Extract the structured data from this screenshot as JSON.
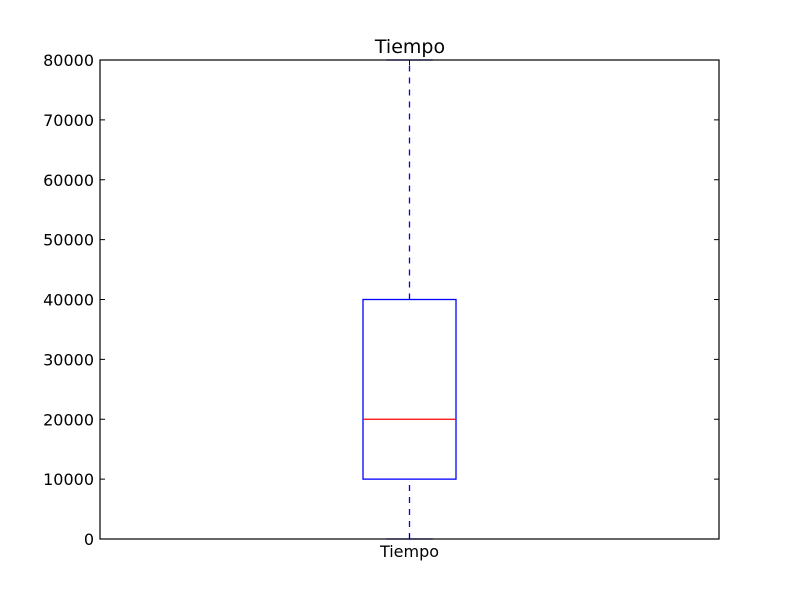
{
  "chart_data": {
    "type": "box",
    "title": "Tiempo",
    "xlabel": "",
    "ylabel": "",
    "categories": [
      "Tiempo"
    ],
    "ylim": [
      0,
      80000
    ],
    "yticks": [
      0,
      10000,
      20000,
      30000,
      40000,
      50000,
      60000,
      70000,
      80000
    ],
    "ytick_labels": [
      "0",
      "10000",
      "20000",
      "30000",
      "40000",
      "50000",
      "60000",
      "70000",
      "80000"
    ],
    "boxes": [
      {
        "category": "Tiempo",
        "whisker_low": 0,
        "q1": 10000,
        "median": 20000,
        "q3": 40000,
        "whisker_high": 80000
      }
    ],
    "grid": false,
    "colors": {
      "box": "#0000ff",
      "whisker": "#0000ff",
      "median": "#ff0000",
      "axes": "#000000"
    }
  }
}
